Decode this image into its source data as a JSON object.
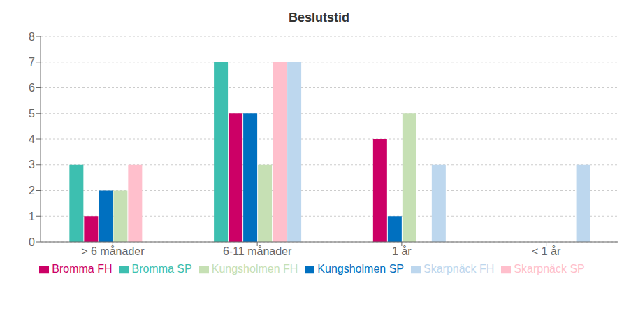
{
  "chart_data": {
    "type": "bar",
    "title": "Beslutstid",
    "categories": [
      "> 6 månader",
      "6-11 månader",
      "1 år",
      "< 1 år"
    ],
    "series": [
      {
        "name": "Bromma SP",
        "color": "#3dbfb0",
        "values": [
          3,
          7,
          0,
          0
        ]
      },
      {
        "name": "Bromma FH",
        "color": "#cc0066",
        "values": [
          1,
          5,
          4,
          0
        ]
      },
      {
        "name": "Kungsholmen SP",
        "color": "#0070c0",
        "values": [
          2,
          5,
          1,
          0
        ]
      },
      {
        "name": "Kungsholmen FH",
        "color": "#c6e0b4",
        "values": [
          2,
          3,
          5,
          0
        ]
      },
      {
        "name": "Skarpnäck SP",
        "color": "#ffbfcc",
        "values": [
          3,
          7,
          0,
          0
        ]
      },
      {
        "name": "Skarpnäck FH",
        "color": "#bdd7ee",
        "values": [
          0,
          7,
          3,
          3
        ]
      }
    ],
    "ylim": [
      0,
      8
    ],
    "yticks": [
      0,
      1,
      2,
      3,
      4,
      5,
      6,
      7,
      8
    ],
    "grid": true,
    "legend": "bottom"
  }
}
